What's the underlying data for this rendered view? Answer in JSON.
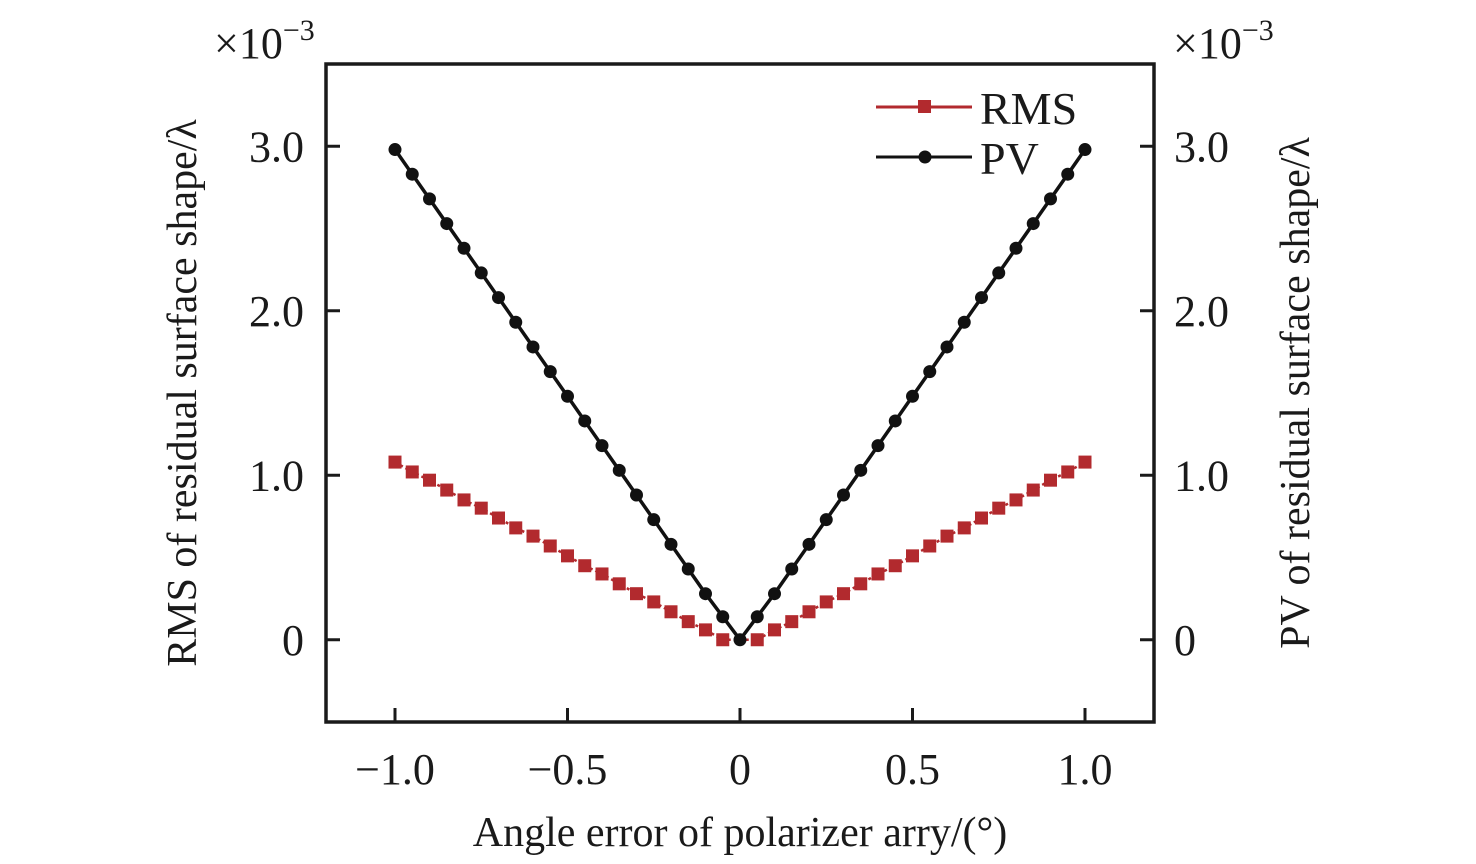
{
  "chart_data": {
    "type": "line",
    "title": "",
    "xlabel": "Angle error of polarizer arry/(°)",
    "ylabel_left": "RMS of residual surface shape/λ",
    "ylabel_right": "PV of residual surface shape/λ",
    "y_multiplier_left": "×10",
    "y_multiplier_right": "×10",
    "y_multiplier_exponent": "−3",
    "xlim": [
      -1.2,
      1.2
    ],
    "ylim": [
      -0.5,
      3.5
    ],
    "xticks": [
      -1.0,
      -0.5,
      0,
      0.5,
      1.0
    ],
    "xtick_labels": [
      "−1.0",
      "−0.5",
      "0",
      "0.5",
      "1.0"
    ],
    "yticks": [
      0,
      1.0,
      2.0,
      3.0
    ],
    "ytick_labels": [
      "0",
      "1.0",
      "2.0",
      "3.0"
    ],
    "grid": false,
    "legend_position": "top-right",
    "series": [
      {
        "name": "RMS",
        "color": "#b22a2e",
        "marker": "square",
        "x": [
          -1.0,
          -0.95,
          -0.9,
          -0.85,
          -0.8,
          -0.75,
          -0.7,
          -0.65,
          -0.6,
          -0.55,
          -0.5,
          -0.45,
          -0.4,
          -0.35,
          -0.3,
          -0.25,
          -0.2,
          -0.15,
          -0.1,
          -0.05,
          0.05,
          0.1,
          0.15,
          0.2,
          0.25,
          0.3,
          0.35,
          0.4,
          0.45,
          0.5,
          0.55,
          0.6,
          0.65,
          0.7,
          0.75,
          0.8,
          0.85,
          0.9,
          0.95,
          1.0
        ],
        "values": [
          1.08,
          1.02,
          0.97,
          0.91,
          0.85,
          0.8,
          0.74,
          0.68,
          0.63,
          0.57,
          0.51,
          0.45,
          0.4,
          0.34,
          0.28,
          0.23,
          0.17,
          0.11,
          0.06,
          0.0,
          0.0,
          0.06,
          0.11,
          0.17,
          0.23,
          0.28,
          0.34,
          0.4,
          0.45,
          0.51,
          0.57,
          0.63,
          0.68,
          0.74,
          0.8,
          0.85,
          0.91,
          0.97,
          1.02,
          1.08
        ]
      },
      {
        "name": "PV",
        "color": "#111111",
        "marker": "circle",
        "x": [
          -1.0,
          -0.95,
          -0.9,
          -0.85,
          -0.8,
          -0.75,
          -0.7,
          -0.65,
          -0.6,
          -0.55,
          -0.5,
          -0.45,
          -0.4,
          -0.35,
          -0.3,
          -0.25,
          -0.2,
          -0.15,
          -0.1,
          -0.05,
          0,
          0.05,
          0.1,
          0.15,
          0.2,
          0.25,
          0.3,
          0.35,
          0.4,
          0.45,
          0.5,
          0.55,
          0.6,
          0.65,
          0.7,
          0.75,
          0.8,
          0.85,
          0.9,
          0.95,
          1.0
        ],
        "values": [
          2.98,
          2.83,
          2.68,
          2.53,
          2.38,
          2.23,
          2.08,
          1.93,
          1.78,
          1.63,
          1.48,
          1.33,
          1.18,
          1.03,
          0.88,
          0.73,
          0.58,
          0.43,
          0.28,
          0.14,
          0.0,
          0.14,
          0.28,
          0.43,
          0.58,
          0.73,
          0.88,
          1.03,
          1.18,
          1.33,
          1.48,
          1.63,
          1.78,
          1.93,
          2.08,
          2.23,
          2.38,
          2.53,
          2.68,
          2.83,
          2.98
        ]
      }
    ]
  }
}
